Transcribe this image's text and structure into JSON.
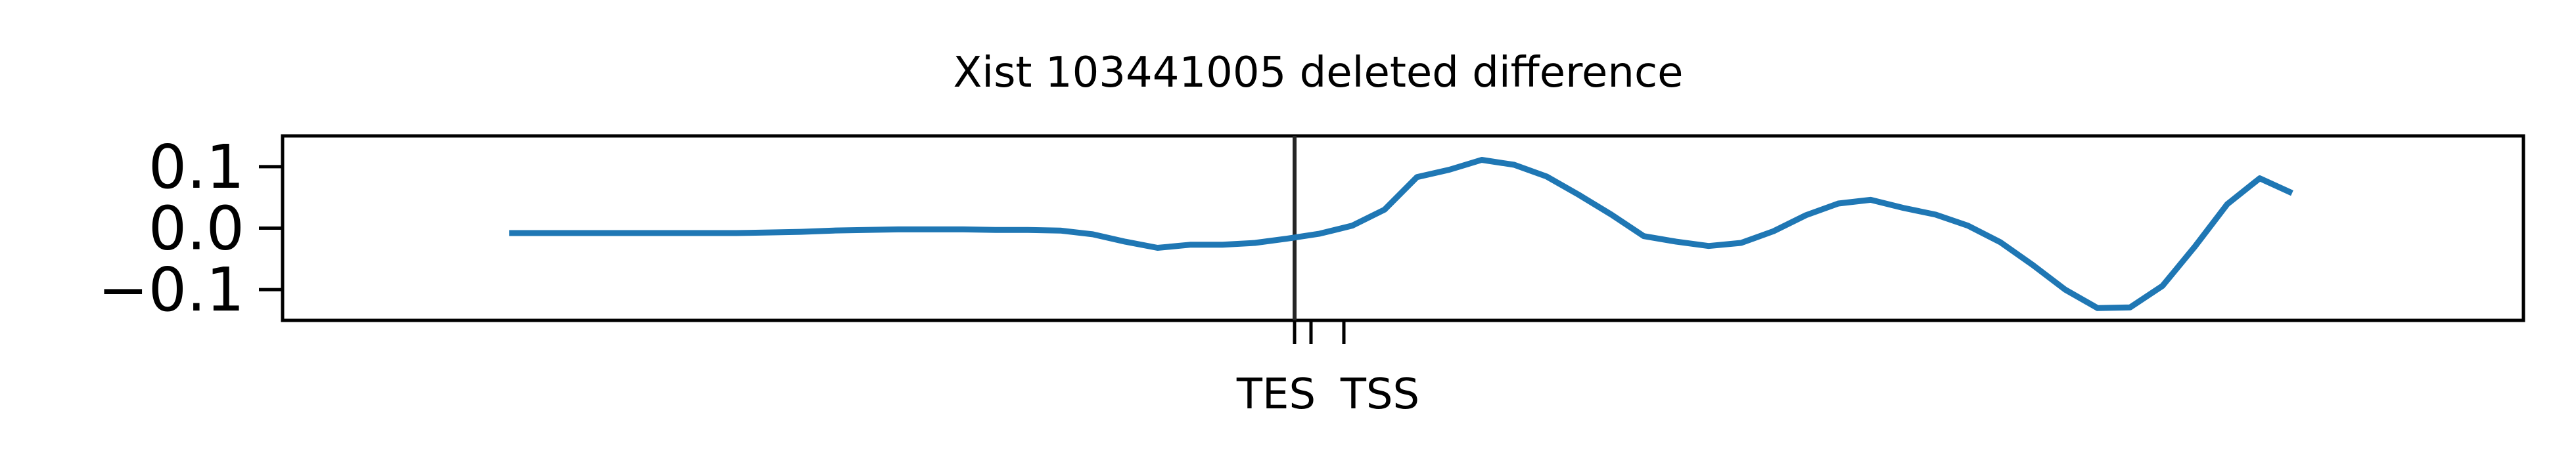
{
  "chart_data": {
    "type": "line",
    "title": "Xist 103441005 deleted difference",
    "xlabel": "",
    "ylabel": "",
    "ylim": [
      -0.15,
      0.15
    ],
    "yticks": [
      {
        "value": 0.1,
        "label": "0.1"
      },
      {
        "value": 0.0,
        "label": "0.0"
      },
      {
        "value": -0.1,
        "label": "−0.1"
      }
    ],
    "xtick_labels": [
      "TES",
      "TSS"
    ],
    "grid": false,
    "colors": {
      "series": "#1f77b4",
      "axes": "#000000",
      "marker_line": "#262626"
    },
    "series": [
      {
        "values": [
          -0.008,
          -0.008,
          -0.008,
          -0.008,
          -0.008,
          -0.008,
          -0.008,
          -0.008,
          -0.007,
          -0.006,
          -0.004,
          -0.003,
          -0.002,
          -0.002,
          -0.002,
          -0.003,
          -0.003,
          -0.004,
          -0.01,
          -0.022,
          -0.032,
          -0.027,
          -0.027,
          -0.024,
          -0.017,
          -0.009,
          0.004,
          0.03,
          0.083,
          0.095,
          0.111,
          0.103,
          0.084,
          0.054,
          0.022,
          -0.013,
          -0.022,
          -0.029,
          -0.024,
          -0.005,
          0.021,
          0.04,
          0.046,
          0.033,
          0.022,
          0.004,
          -0.023,
          -0.06,
          -0.1,
          -0.13,
          -0.129,
          -0.094,
          -0.03,
          0.039,
          0.081,
          0.057
        ]
      }
    ]
  }
}
